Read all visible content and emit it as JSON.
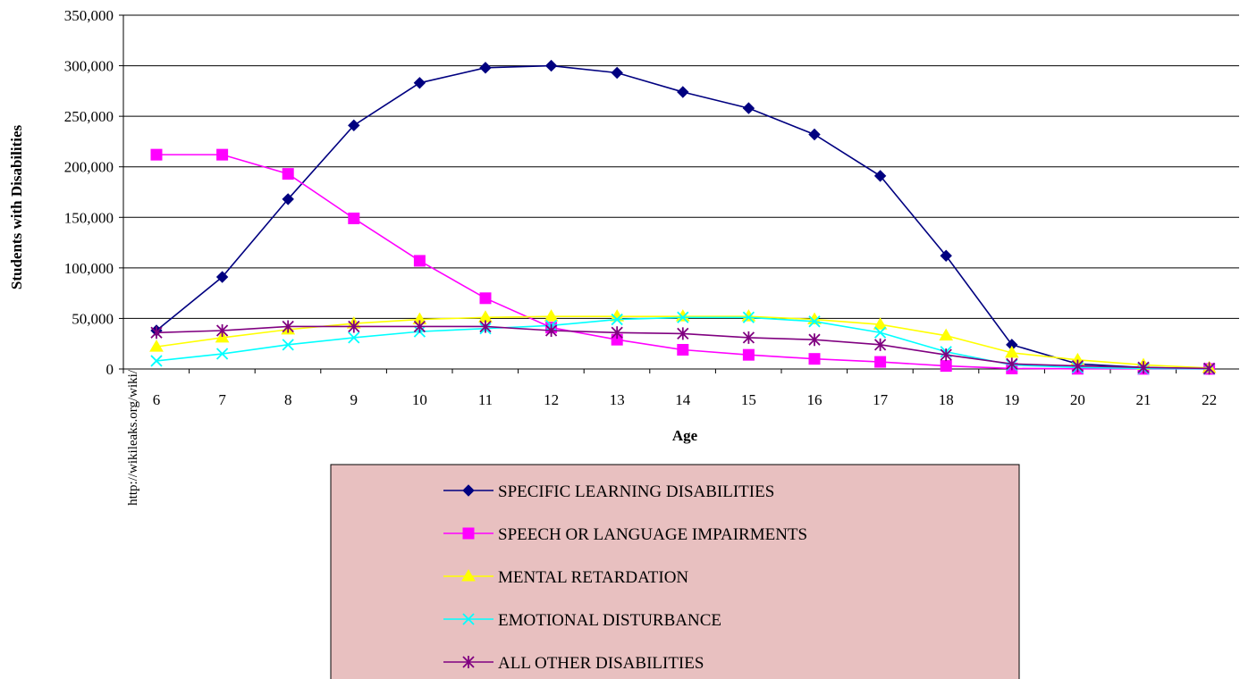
{
  "watermark": "http://wikileaks.org/wiki/",
  "chart_data": {
    "type": "line",
    "xlabel": "Age",
    "ylabel": "Students with Disabilities",
    "ylim": [
      0,
      350000
    ],
    "ytick_values": [
      0,
      50000,
      100000,
      150000,
      200000,
      250000,
      300000,
      350000
    ],
    "ytick_labels": [
      "0",
      "50,000",
      "100,000",
      "150,000",
      "200,000",
      "250,000",
      "300,000",
      "350,000"
    ],
    "categories": [
      "6",
      "7",
      "8",
      "9",
      "10",
      "11",
      "12",
      "13",
      "14",
      "15",
      "16",
      "17",
      "18",
      "19",
      "20",
      "21",
      "22"
    ],
    "grid": "horizontal major gridlines",
    "legend_position": "bottom",
    "legend_background": "#e8c0c0",
    "series": [
      {
        "name": "SPECIFIC LEARNING DISABILITIES",
        "color": "#000080",
        "marker": "diamond",
        "values": [
          38000,
          91000,
          168000,
          241000,
          283000,
          298000,
          300000,
          293000,
          274000,
          258000,
          232000,
          191000,
          112000,
          24000,
          5000,
          1500,
          200
        ]
      },
      {
        "name": "SPEECH OR LANGUAGE IMPAIRMENTS",
        "color": "#ff00ff",
        "marker": "square",
        "values": [
          212000,
          212000,
          193000,
          149000,
          107000,
          70000,
          41000,
          29000,
          19000,
          14000,
          10000,
          7000,
          3000,
          500,
          200,
          100,
          50
        ]
      },
      {
        "name": "MENTAL RETARDATION",
        "color": "#ffff00",
        "marker": "triangle",
        "values": [
          22000,
          31000,
          39000,
          45000,
          49000,
          51000,
          52000,
          52000,
          52000,
          52000,
          49000,
          44000,
          33000,
          16000,
          9000,
          4000,
          1000
        ]
      },
      {
        "name": "EMOTIONAL DISTURBANCE",
        "color": "#00ffff",
        "marker": "x",
        "values": [
          8000,
          15000,
          24000,
          31000,
          37000,
          40000,
          43000,
          49000,
          51000,
          51000,
          47000,
          36000,
          17000,
          4000,
          1500,
          500,
          100
        ]
      },
      {
        "name": "ALL OTHER DISABILITIES",
        "color": "#800080",
        "marker": "star",
        "values": [
          36000,
          38000,
          42000,
          42000,
          42000,
          42000,
          38000,
          36000,
          35000,
          31000,
          29000,
          24000,
          14000,
          5000,
          3000,
          1500,
          500
        ]
      }
    ]
  }
}
